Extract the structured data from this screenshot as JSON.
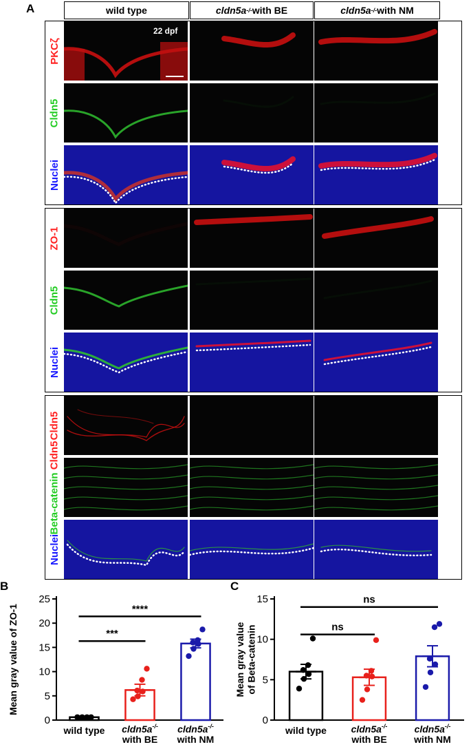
{
  "panel_labels": {
    "a": "A",
    "b": "B",
    "c": "C"
  },
  "columns": [
    {
      "text": "wild type",
      "sup": "",
      "rest": ""
    },
    {
      "text": "cldn5a",
      "sup": "-/-",
      "rest": " with BE"
    },
    {
      "text": "cldn5a",
      "sup": "-/-",
      "rest": " with NM"
    }
  ],
  "groups": [
    {
      "rows": [
        {
          "label": [
            {
              "text": "PKCζ",
              "color": "#ff2020"
            }
          ],
          "channel": "red"
        },
        {
          "label": [
            {
              "text": "Cldn5",
              "color": "#22cc22"
            }
          ],
          "channel": "green"
        },
        {
          "label": [
            {
              "text": "Nuclei",
              "color": "#1a1aff"
            }
          ],
          "channel": "merge"
        }
      ]
    },
    {
      "rows": [
        {
          "label": [
            {
              "text": "ZO-1",
              "color": "#ff2020"
            }
          ],
          "channel": "red"
        },
        {
          "label": [
            {
              "text": "Cldn5",
              "color": "#22cc22"
            }
          ],
          "channel": "green"
        },
        {
          "label": [
            {
              "text": "Nuclei",
              "color": "#1a1aff"
            }
          ],
          "channel": "merge"
        }
      ]
    },
    {
      "rows": [
        {
          "label": [
            {
              "text": "Cldn5",
              "color": "#ff2020"
            }
          ],
          "channel": "red"
        },
        {
          "label": [
            {
              "text": "Beta-catenin",
              "color": "#22cc22"
            },
            {
              "text": " Cldn5",
              "color": "#ff2020"
            }
          ],
          "channel": "green"
        },
        {
          "label": [
            {
              "text": "Nuclei",
              "color": "#1a1aff"
            }
          ],
          "channel": "merge"
        }
      ]
    }
  ],
  "time_label": "22 dpf",
  "chart_data": [
    {
      "type": "bar",
      "panel": "B",
      "categories": [
        "wild type",
        "cldn5a-/- with BE",
        "cldn5a-/- with NM"
      ],
      "values": [
        0.6,
        6.2,
        15.8
      ],
      "sem": [
        0.1,
        1.2,
        0.9
      ],
      "points": [
        [
          0.6,
          0.6,
          0.6,
          0.5,
          0.5,
          0.6
        ],
        [
          4.3,
          4.9,
          5.9,
          6.1,
          8.3,
          10.6
        ],
        [
          13.2,
          14.7,
          15.7,
          16.0,
          16.5,
          18.7
        ]
      ],
      "colors": [
        "#000000",
        "#e8201b",
        "#1a1aaa"
      ],
      "ylabel": "Mean gray value of ZO-1",
      "ylim": [
        0,
        25
      ],
      "yticks": [
        0,
        5,
        10,
        15,
        20,
        25
      ],
      "significance": [
        {
          "from": 0,
          "to": 1,
          "label": "***",
          "y": 16.3
        },
        {
          "from": 0,
          "to": 2,
          "label": "****",
          "y": 21.4
        }
      ]
    },
    {
      "type": "bar",
      "panel": "C",
      "categories": [
        "wild type",
        "cldn5a-/- with BE",
        "cldn5a-/- with NM"
      ],
      "values": [
        6.0,
        5.3,
        7.9
      ],
      "sem": [
        0.9,
        1.0,
        1.3
      ],
      "points": [
        [
          3.9,
          5.1,
          5.7,
          6.2,
          6.8,
          10.1
        ],
        [
          2.5,
          3.8,
          5.4,
          5.5,
          6.1,
          9.9
        ],
        [
          4.1,
          5.9,
          6.9,
          7.6,
          11.5,
          11.9
        ]
      ],
      "colors": [
        "#000000",
        "#e8201b",
        "#1a1aaa"
      ],
      "ylabel": "Mean gray value of Beta-catenin",
      "ylim": [
        0,
        15
      ],
      "yticks": [
        0,
        5,
        10,
        15
      ],
      "significance": [
        {
          "from": 0,
          "to": 1,
          "label": "ns",
          "y": 10.6
        },
        {
          "from": 0,
          "to": 2,
          "label": "ns",
          "y": 14.0
        }
      ]
    }
  ]
}
